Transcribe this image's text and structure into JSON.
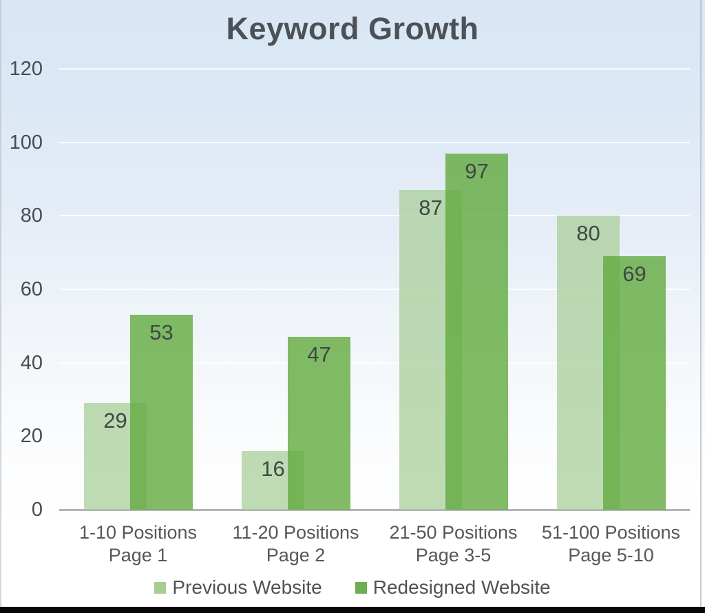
{
  "title": "Keyword Growth",
  "chart_data": {
    "type": "bar",
    "title": "Keyword Growth",
    "categories": [
      "1-10 Positions Page 1",
      "11-20 Positions Page 2",
      "21-50 Positions Page 3-5",
      "51-100 Positions Page 5-10"
    ],
    "categories_lines": [
      [
        "1-10 Positions",
        "Page 1"
      ],
      [
        "11-20 Positions",
        "Page 2"
      ],
      [
        "21-50 Positions",
        "Page 3-5"
      ],
      [
        "51-100 Positions",
        "Page 5-10"
      ]
    ],
    "series": [
      {
        "name": "Previous Website",
        "values": [
          29,
          16,
          87,
          80
        ],
        "fill": "rgba(165,205,150,0.72)",
        "legend_color": "#a5cd96"
      },
      {
        "name": "Redesigned Website",
        "values": [
          53,
          47,
          97,
          69
        ],
        "fill": "rgba(97,170,63,0.80)",
        "legend_color": "#6cae53"
      }
    ],
    "y_ticks": [
      0,
      20,
      40,
      60,
      80,
      100,
      120
    ],
    "ylim": [
      0,
      120
    ],
    "xlabel": "",
    "ylabel": "",
    "grid": true,
    "legend_position": "bottom",
    "value_labels": true,
    "value_label_color": "#3f4843",
    "axis_line_color": "#b2b5b7",
    "background_top_color": "#d9e6f4",
    "background_bottom_color": "#ffffff",
    "title_color": "#4b5157"
  }
}
